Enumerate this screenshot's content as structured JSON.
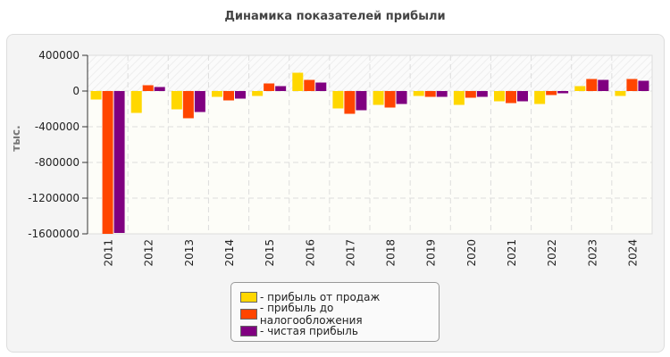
{
  "chart_data": {
    "type": "bar",
    "title": "Динамика показателей прибыли",
    "ylabel": "тыс.",
    "xlabel": "",
    "ylim": [
      -1600000,
      400000
    ],
    "yticks": [
      400000,
      0,
      -400000,
      -800000,
      -1200000,
      -1600000
    ],
    "grid": true,
    "legend_position": "bottom",
    "categories": [
      "2011",
      "2012",
      "2013",
      "2014",
      "2015",
      "2016",
      "2017",
      "2018",
      "2019",
      "2020",
      "2021",
      "2022",
      "2023",
      "2024"
    ],
    "series": [
      {
        "name": "- прибыль от продаж",
        "color": "#FFD700",
        "values": [
          -95000,
          -245000,
          -205000,
          -65000,
          -55000,
          205000,
          -195000,
          -155000,
          -55000,
          -155000,
          -115000,
          -145000,
          55000,
          -55000
        ]
      },
      {
        "name": "- прибыль до налогообложения",
        "color": "#FF4500",
        "values": [
          -1600000,
          65000,
          -305000,
          -105000,
          85000,
          125000,
          -255000,
          -185000,
          -65000,
          -75000,
          -135000,
          -45000,
          135000,
          135000
        ]
      },
      {
        "name": "- чистая прибыль",
        "color": "#800080",
        "values": [
          -1590000,
          45000,
          -235000,
          -85000,
          55000,
          95000,
          -215000,
          -145000,
          -65000,
          -65000,
          -115000,
          -25000,
          125000,
          115000
        ]
      }
    ]
  }
}
